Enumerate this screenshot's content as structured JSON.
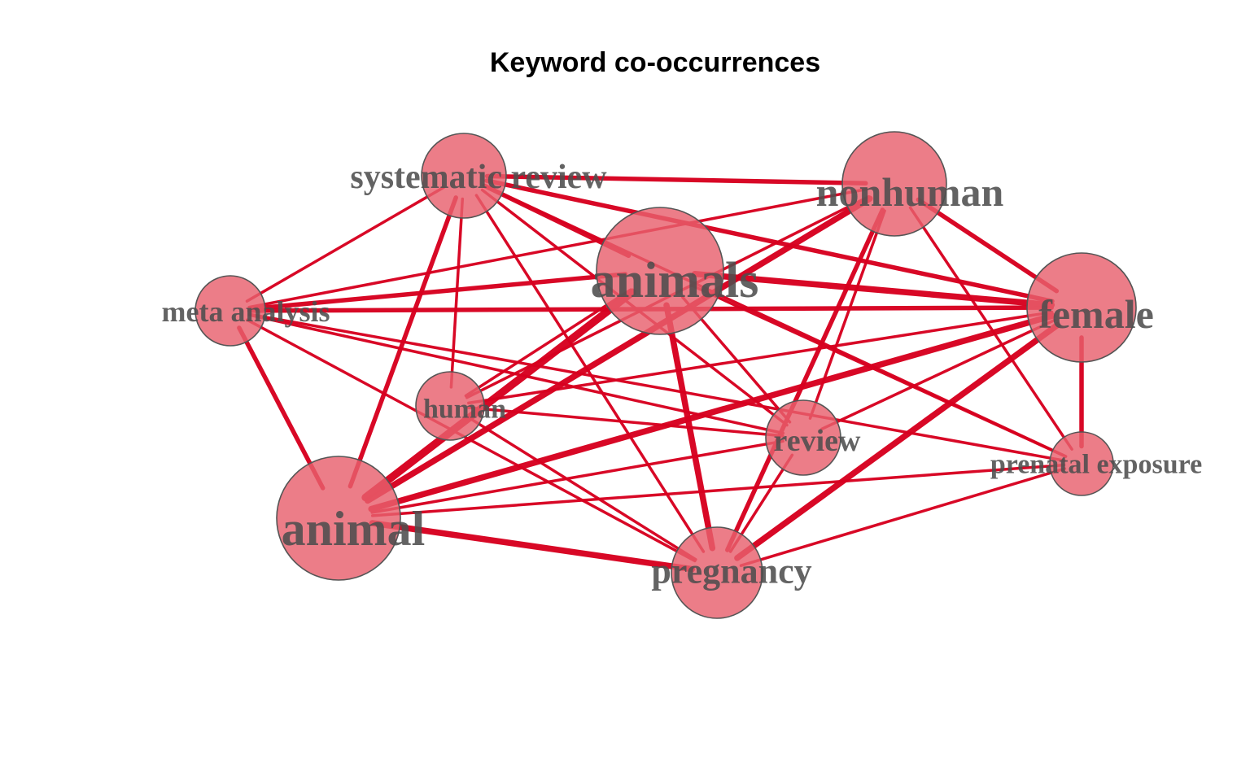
{
  "title": "Keyword co-occurrences",
  "colors": {
    "edge": "#d7001f",
    "node_fill": "#e8606e",
    "node_stroke": "#555555",
    "label": "#4d4d4d"
  },
  "nodes": [
    {
      "id": "systematic_review",
      "label": "systematic review"
    },
    {
      "id": "nonhuman",
      "label": "nonhuman"
    },
    {
      "id": "animals",
      "label": "animals"
    },
    {
      "id": "meta_analysis",
      "label": "meta analysis"
    },
    {
      "id": "female",
      "label": "female"
    },
    {
      "id": "human",
      "label": "human"
    },
    {
      "id": "review",
      "label": "review"
    },
    {
      "id": "prenatal_exposure",
      "label": "prenatal exposure"
    },
    {
      "id": "animal",
      "label": "animal"
    },
    {
      "id": "pregnancy",
      "label": "pregnancy"
    }
  ],
  "edges": [
    [
      "systematic_review",
      "nonhuman",
      3
    ],
    [
      "systematic_review",
      "animals",
      3
    ],
    [
      "systematic_review",
      "female",
      3
    ],
    [
      "systematic_review",
      "meta_analysis",
      2
    ],
    [
      "systematic_review",
      "animal",
      3
    ],
    [
      "systematic_review",
      "human",
      2
    ],
    [
      "systematic_review",
      "pregnancy",
      2
    ],
    [
      "systematic_review",
      "review",
      2
    ],
    [
      "systematic_review",
      "prenatal_exposure",
      2
    ],
    [
      "nonhuman",
      "female",
      3
    ],
    [
      "nonhuman",
      "animal",
      4
    ],
    [
      "nonhuman",
      "meta_analysis",
      2
    ],
    [
      "nonhuman",
      "pregnancy",
      3
    ],
    [
      "nonhuman",
      "review",
      2
    ],
    [
      "nonhuman",
      "prenatal_exposure",
      2
    ],
    [
      "nonhuman",
      "human",
      2
    ],
    [
      "animals",
      "female",
      4
    ],
    [
      "animals",
      "animal",
      5
    ],
    [
      "animals",
      "meta_analysis",
      3
    ],
    [
      "animals",
      "pregnancy",
      4
    ],
    [
      "animals",
      "review",
      2
    ],
    [
      "animals",
      "prenatal_exposure",
      2
    ],
    [
      "animals",
      "human",
      2
    ],
    [
      "meta_analysis",
      "female",
      3
    ],
    [
      "meta_analysis",
      "animal",
      3
    ],
    [
      "meta_analysis",
      "pregnancy",
      2
    ],
    [
      "meta_analysis",
      "review",
      2
    ],
    [
      "meta_analysis",
      "prenatal_exposure",
      2
    ],
    [
      "female",
      "animal",
      4
    ],
    [
      "female",
      "pregnancy",
      4
    ],
    [
      "female",
      "prenatal_exposure",
      3
    ],
    [
      "female",
      "human",
      2
    ],
    [
      "female",
      "review",
      2
    ],
    [
      "human",
      "pregnancy",
      2
    ],
    [
      "human",
      "review",
      2
    ],
    [
      "animal",
      "pregnancy",
      4
    ],
    [
      "animal",
      "review",
      2
    ],
    [
      "animal",
      "prenatal_exposure",
      2
    ],
    [
      "pregnancy",
      "review",
      2
    ],
    [
      "pregnancy",
      "prenatal_exposure",
      2
    ]
  ]
}
